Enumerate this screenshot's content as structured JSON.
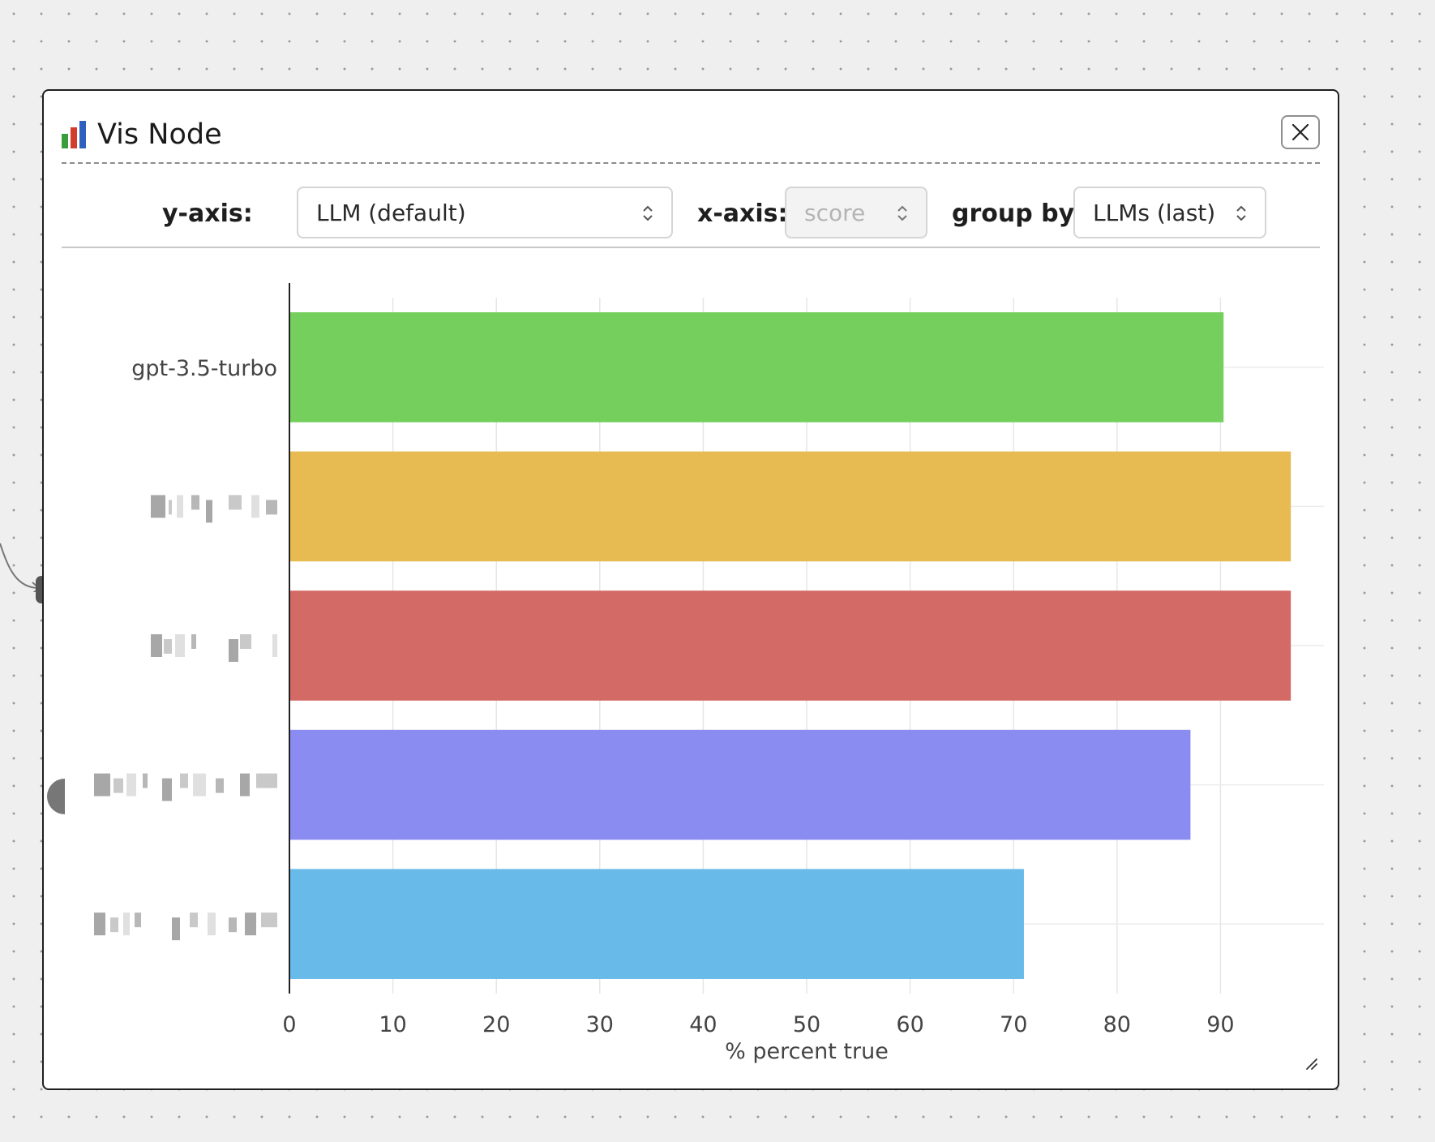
{
  "node": {
    "title": "Vis Node",
    "close_icon": "close-icon",
    "title_icon": "bar-chart-emoji-icon"
  },
  "controls": {
    "y_axis_label": "y-axis:",
    "y_axis_value": "LLM (default)",
    "x_axis_label": "x-axis:",
    "x_axis_value": "score",
    "group_by_label": "group by:",
    "group_by_value": "LLMs (last)"
  },
  "chart_data": {
    "type": "bar",
    "orientation": "horizontal",
    "categories": [
      "gpt-3.5-turbo",
      "",
      "",
      "",
      ""
    ],
    "values": [
      90.3,
      96.8,
      96.8,
      87.1,
      71.0
    ],
    "colors": [
      "#74cf5c",
      "#e7ba52",
      "#d46a66",
      "#8a8cf1",
      "#68bbe9"
    ],
    "xlabel": "% percent true",
    "ylabel": "",
    "xlim": [
      0,
      100
    ],
    "xticks": [
      "0",
      "10",
      "20",
      "30",
      "40",
      "50",
      "60",
      "70",
      "80",
      "90"
    ],
    "grid": true
  }
}
